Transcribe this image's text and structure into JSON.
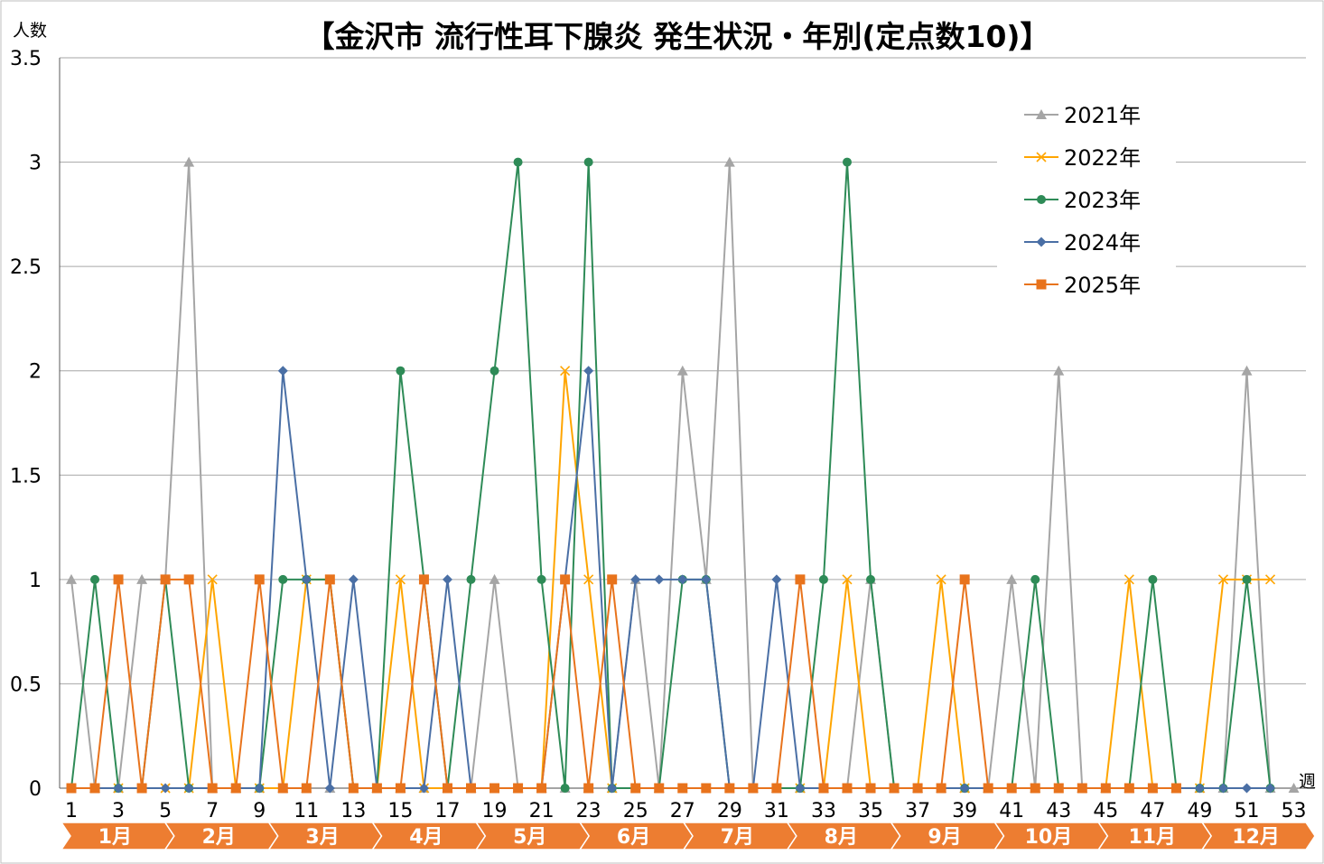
{
  "chart_data": {
    "type": "line",
    "title": "【金沢市 流行性耳下腺炎 発生状況・年別(定点数10)】",
    "ylabel": "人数",
    "xlabel": "週",
    "ylim": [
      0,
      3.5
    ],
    "yticks": [
      "0",
      "0.5",
      "1",
      "1.5",
      "2",
      "2.5",
      "3",
      "3.5"
    ],
    "ytick_values": [
      0,
      0.5,
      1,
      1.5,
      2,
      2.5,
      3,
      3.5
    ],
    "xlim": [
      1,
      53
    ],
    "xticks": [
      "1",
      "3",
      "5",
      "7",
      "9",
      "11",
      "13",
      "15",
      "17",
      "19",
      "21",
      "23",
      "25",
      "27",
      "29",
      "31",
      "33",
      "35",
      "37",
      "39",
      "41",
      "43",
      "45",
      "47",
      "49",
      "51",
      "53"
    ],
    "xtick_values": [
      1,
      3,
      5,
      7,
      9,
      11,
      13,
      15,
      17,
      19,
      21,
      23,
      25,
      27,
      29,
      31,
      33,
      35,
      37,
      39,
      41,
      43,
      45,
      47,
      49,
      51,
      53
    ],
    "grid": true,
    "legend_position": "top-right",
    "months": [
      "1月",
      "2月",
      "3月",
      "4月",
      "5月",
      "6月",
      "7月",
      "8月",
      "9月",
      "10月",
      "11月",
      "12月"
    ],
    "series": [
      {
        "name": "2021年",
        "color": "#a5a5a5",
        "marker": "triangle",
        "values": [
          1,
          0,
          0,
          1,
          1,
          3,
          0,
          0,
          0,
          0,
          0,
          0,
          0,
          0,
          0,
          0,
          0,
          0,
          1,
          0,
          0,
          0,
          0,
          0,
          1,
          0,
          2,
          1,
          3,
          0,
          0,
          0,
          0,
          0,
          1,
          0,
          0,
          0,
          0,
          0,
          1,
          0,
          2,
          0,
          0,
          0,
          0,
          0,
          0,
          0,
          2,
          0,
          0
        ]
      },
      {
        "name": "2022年",
        "color": "#ffa500",
        "marker": "x",
        "values": [
          0,
          0,
          0,
          0,
          0,
          0,
          1,
          0,
          0,
          0,
          1,
          1,
          0,
          0,
          1,
          0,
          0,
          0,
          0,
          0,
          0,
          2,
          1,
          0,
          0,
          0,
          0,
          0,
          0,
          0,
          0,
          0,
          0,
          1,
          0,
          0,
          0,
          1,
          0,
          0,
          0,
          0,
          0,
          0,
          0,
          1,
          0,
          0,
          0,
          1,
          1,
          1
        ]
      },
      {
        "name": "2023年",
        "color": "#2e8b57",
        "marker": "circle",
        "values": [
          0,
          1,
          0,
          0,
          1,
          0,
          0,
          0,
          0,
          1,
          1,
          1,
          0,
          0,
          2,
          1,
          0,
          1,
          2,
          3,
          1,
          0,
          3,
          0,
          0,
          0,
          1,
          1,
          0,
          0,
          0,
          0,
          1,
          3,
          1,
          0,
          0,
          0,
          0,
          0,
          0,
          1,
          0,
          0,
          0,
          0,
          1,
          0,
          0,
          0,
          1,
          0
        ]
      },
      {
        "name": "2024年",
        "color": "#4a6fa5",
        "marker": "diamond",
        "values": [
          0,
          0,
          0,
          0,
          0,
          0,
          0,
          0,
          0,
          2,
          1,
          0,
          1,
          0,
          0,
          0,
          1,
          0,
          0,
          0,
          0,
          1,
          2,
          0,
          1,
          1,
          1,
          1,
          0,
          0,
          1,
          0,
          0,
          0,
          0,
          0,
          0,
          0,
          0,
          0,
          0,
          0,
          0,
          0,
          0,
          0,
          0,
          0,
          0,
          0,
          0,
          0
        ]
      },
      {
        "name": "2025年",
        "color": "#e8731c",
        "marker": "square",
        "values": [
          0,
          0,
          1,
          0,
          1,
          1,
          0,
          0,
          1,
          0,
          0,
          1,
          0,
          0,
          0,
          1,
          0,
          0,
          0,
          0,
          0,
          1,
          0,
          1,
          0,
          0,
          0,
          0,
          0,
          0,
          0,
          1,
          0,
          0,
          0,
          0,
          0,
          0,
          1,
          0,
          0,
          0,
          0,
          0,
          0,
          0,
          0,
          0
        ]
      }
    ]
  }
}
